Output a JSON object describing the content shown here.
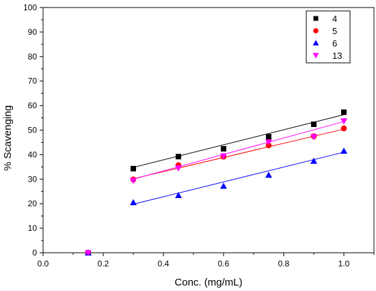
{
  "chart_data": {
    "type": "scatter",
    "xlabel": "Conc. (mg/mL)",
    "ylabel": "% Scavenging",
    "xlim": [
      0.0,
      1.1
    ],
    "ylim": [
      0,
      100
    ],
    "xticks": [
      0.0,
      0.2,
      0.4,
      0.6,
      0.8,
      1.0
    ],
    "xtick_labels": [
      "0.0",
      "0.2",
      "0.4",
      "0.6",
      "0.8",
      "1.0"
    ],
    "yticks": [
      0,
      10,
      20,
      30,
      40,
      50,
      60,
      70,
      80,
      90,
      100
    ],
    "ytick_labels": [
      "0",
      "10",
      "20",
      "30",
      "40",
      "50",
      "60",
      "70",
      "80",
      "90",
      "100"
    ],
    "legend_position": "top-right",
    "series": [
      {
        "name": "4",
        "marker": "square",
        "color": "#000000",
        "x": [
          0.15,
          0.3,
          0.45,
          0.6,
          0.75,
          0.9,
          1.0
        ],
        "y": [
          0,
          34.3,
          39.2,
          42.4,
          47.3,
          52.4,
          57.3
        ],
        "fit": [
          [
            0.3,
            34.8
          ],
          [
            1.0,
            56.3
          ]
        ]
      },
      {
        "name": "5",
        "marker": "circle",
        "color": "#ff0000",
        "x": [
          0.15,
          0.3,
          0.45,
          0.6,
          0.75,
          0.9,
          1.0
        ],
        "y": [
          0,
          29.9,
          35.7,
          39.2,
          43.8,
          47.5,
          50.7
        ],
        "fit": [
          [
            0.3,
            30.2
          ],
          [
            1.0,
            50.4
          ]
        ]
      },
      {
        "name": "6",
        "marker": "triangle-up",
        "color": "#0000ff",
        "x": [
          0.15,
          0.3,
          0.45,
          0.6,
          0.75,
          0.9,
          1.0
        ],
        "y": [
          0,
          20.5,
          23.4,
          27.2,
          31.7,
          37.4,
          41.5
        ],
        "fit": [
          [
            0.3,
            19.8
          ],
          [
            1.0,
            41.0
          ]
        ]
      },
      {
        "name": "13",
        "marker": "triangle-down",
        "color": "#ff00ff",
        "x": [
          0.15,
          0.3,
          0.45,
          0.6,
          0.75,
          0.9,
          1.0
        ],
        "y": [
          0,
          29.4,
          34.5,
          39.4,
          45.1,
          47.3,
          53.7
        ],
        "fit": [
          [
            0.3,
            30.0
          ],
          [
            1.0,
            53.5
          ]
        ]
      }
    ]
  }
}
